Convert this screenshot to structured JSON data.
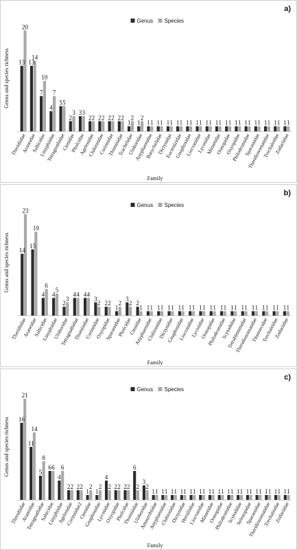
{
  "legend_labels": [
    "Genus",
    "Species"
  ],
  "colors": {
    "genus": "#2b2b2b",
    "species": "#a9a9a9"
  },
  "chart_data": [
    {
      "type": "bar",
      "panel_label": "a)",
      "xlabel": "Family",
      "ylabel": "Genus and species richness",
      "ylim": [
        0,
        21
      ],
      "categories": [
        "Theridiidae",
        "Araneidae",
        "Salticidae",
        "Linyphiidae",
        "Tetragnathidae",
        "Ctenidae",
        "Pholcidae",
        "Agelenidae",
        "Clubionidae",
        "Corinnidae",
        "Thomisidae",
        "Trachelidae",
        "Uloboridae",
        "Anyphaenidae",
        "Barychelidae",
        "Dictynidae",
        "Euctenizidae",
        "Gnaphosidae",
        "Liocranidae",
        "Lycosidae",
        "Mimetidae",
        "Oonopidae",
        "Oxyopidae",
        "Philodromidae",
        "Sparassidae",
        "Theridiosomatidae",
        "Trechaleidae",
        "Zodariidae"
      ],
      "series": [
        {
          "name": "Genus",
          "values": [
            13,
            13,
            7,
            4,
            5,
            2,
            3,
            2,
            2,
            2,
            2,
            1,
            1,
            1,
            1,
            1,
            1,
            1,
            1,
            1,
            1,
            1,
            1,
            1,
            1,
            1,
            1,
            1
          ]
        },
        {
          "name": "Species",
          "values": [
            20,
            14,
            10,
            7,
            5,
            3,
            3,
            2,
            2,
            2,
            2,
            2,
            2,
            1,
            1,
            1,
            1,
            1,
            1,
            1,
            1,
            1,
            1,
            1,
            1,
            1,
            1,
            1
          ]
        }
      ]
    },
    {
      "type": "bar",
      "panel_label": "b)",
      "xlabel": "Family",
      "ylabel": "Genus and species richness",
      "ylim": [
        0,
        24
      ],
      "categories": [
        "Theridiidae",
        "Araneidae",
        "Salticidae",
        "Linyphiidae",
        "Uloboridae",
        "Tetragnathidae",
        "Thomisidae",
        "Corinnidae",
        "Oxyopidae",
        "Sparassidae",
        "Pholcidae",
        "Ctenidae",
        "Anyphaenidae",
        "Clubionidae",
        "Dictynidae",
        "Gnaphosidae",
        "Liocranidae",
        "Lycosidae",
        "Oonopidae",
        "Philodromidae",
        "Scytodidae",
        "Tetrablemmidae",
        "Theridiosomatidae",
        "Titanoecidae",
        "Trechaleidae",
        "Zodariidae"
      ],
      "series": [
        {
          "name": "Genus",
          "values": [
            14,
            15,
            4,
            4,
            2,
            4,
            4,
            3,
            2,
            1,
            3,
            2,
            1,
            1,
            1,
            1,
            1,
            1,
            1,
            1,
            1,
            1,
            1,
            1,
            1,
            1
          ]
        },
        {
          "name": "Species",
          "values": [
            23,
            19,
            6,
            5,
            3,
            4,
            4,
            2,
            2,
            2,
            2,
            1,
            1,
            1,
            1,
            1,
            1,
            1,
            1,
            1,
            1,
            1,
            1,
            1,
            1,
            1
          ]
        }
      ]
    },
    {
      "type": "bar",
      "panel_label": "c)",
      "xlabel": "Family",
      "ylabel": "Genus and species richness",
      "ylim": [
        0,
        22
      ],
      "categories": [
        "Theridiidae",
        "Araneidae",
        "Tetragnathidae",
        "Salticidae",
        "Linyphiidae",
        "Agelenidae",
        "Corinnidae2",
        "Ctenidae",
        "Gnaphosidae",
        "Lycosidae",
        "Oxyopidae",
        "Pholcidae",
        "Thomisidae",
        "Uloboridae",
        "Amaurobiidae",
        "Anyphaenidae",
        "Clubionidae",
        "Dictynidae",
        "Hersiliidae",
        "Liocranidae",
        "Mimetidae",
        "Oonopidae",
        "Philodromidae",
        "Scytodidae",
        "Selenopidae",
        "Sparassidae",
        "Theridiosomatidae",
        "Trechaleidae",
        "Zodariidae"
      ],
      "series": [
        {
          "name": "Genus",
          "values": [
            16,
            11,
            5,
            6,
            4,
            2,
            2,
            1,
            1,
            4,
            2,
            2,
            6,
            3,
            1,
            1,
            1,
            1,
            1,
            1,
            1,
            1,
            1,
            1,
            1,
            1,
            1,
            1,
            1
          ]
        },
        {
          "name": "Species",
          "values": [
            21,
            14,
            8,
            6,
            6,
            2,
            2,
            2,
            2,
            2,
            2,
            2,
            2,
            2,
            1,
            1,
            1,
            1,
            1,
            1,
            1,
            1,
            1,
            1,
            1,
            1,
            1,
            1,
            1
          ]
        }
      ]
    }
  ]
}
